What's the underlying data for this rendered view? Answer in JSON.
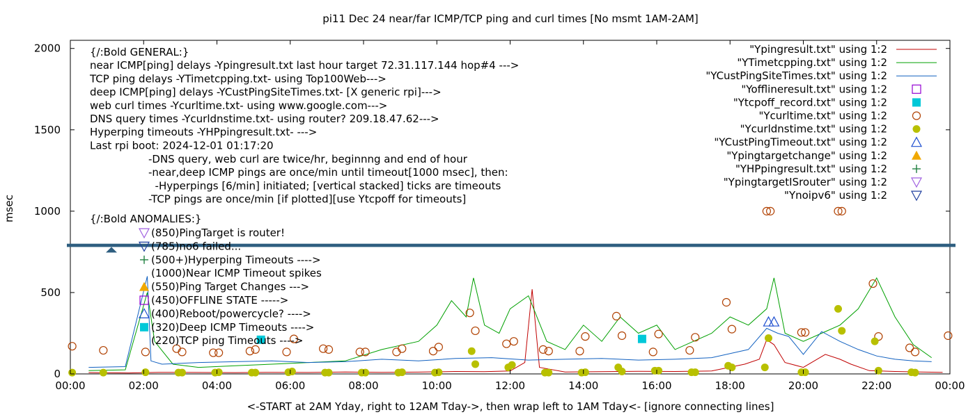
{
  "chart_data": {
    "type": "line",
    "title": "pi11 Dec 24  near/far ICMP/TCP ping and curl times [No msmt 1AM-2AM]",
    "xlabel": "<-START at 2AM Yday, right to 12AM Tday->, then wrap left to 1AM Tday<- [ignore connecting lines]",
    "ylabel": "msec",
    "x_ticks": [
      "00:00",
      "02:00",
      "04:00",
      "06:00",
      "08:00",
      "10:00",
      "12:00",
      "14:00",
      "16:00",
      "18:00",
      "20:00",
      "22:00",
      "00:00"
    ],
    "y_ticks": [
      "0",
      "500",
      "1000",
      "1500",
      "2000"
    ],
    "xlim": [
      0,
      24
    ],
    "ylim": [
      0,
      2050
    ],
    "y_break": [
      780,
      800
    ],
    "grid": false,
    "legend_position": "top-right",
    "series": [
      {
        "name": "\"Ypingresult.txt\" using 1:2",
        "style": "line",
        "color": "#c00000",
        "x": [
          0.5,
          1.6,
          2.4,
          3.5,
          4.5,
          5.5,
          6.5,
          7.5,
          8.5,
          9.5,
          10.5,
          11.3,
          12.0,
          12.4,
          12.6,
          12.8,
          13.5,
          14.5,
          15.5,
          16.5,
          17.5,
          18.4,
          18.8,
          19.0,
          19.2,
          19.5,
          20.0,
          20.6,
          21.0,
          21.3,
          21.8,
          22.5,
          23.2,
          23.8
        ],
        "y": [
          8,
          6,
          10,
          9,
          8,
          10,
          9,
          12,
          10,
          11,
          15,
          14,
          18,
          70,
          520,
          40,
          12,
          14,
          16,
          15,
          18,
          60,
          90,
          210,
          180,
          70,
          40,
          120,
          90,
          60,
          20,
          15,
          12,
          10
        ]
      },
      {
        "name": "\"YTimetcpping.txt\" using 1:2",
        "style": "line",
        "color": "#00a000",
        "x": [
          0.5,
          1.5,
          2.1,
          2.3,
          2.8,
          3.5,
          4.5,
          5.5,
          6.5,
          7.5,
          8.5,
          9.5,
          10.0,
          10.4,
          10.8,
          11.0,
          11.3,
          11.7,
          12.0,
          12.5,
          13.0,
          13.5,
          14.0,
          14.5,
          15.0,
          15.5,
          16.0,
          16.5,
          17.0,
          17.5,
          18.0,
          18.5,
          19.0,
          19.2,
          19.5,
          20.0,
          20.5,
          21.0,
          21.5,
          22.0,
          22.5,
          23.0,
          23.5
        ],
        "y": [
          20,
          25,
          500,
          200,
          60,
          40,
          50,
          60,
          70,
          80,
          150,
          200,
          300,
          450,
          350,
          590,
          300,
          250,
          400,
          480,
          200,
          150,
          300,
          200,
          350,
          250,
          300,
          150,
          200,
          250,
          350,
          300,
          400,
          590,
          250,
          200,
          250,
          300,
          400,
          590,
          350,
          180,
          100
        ]
      },
      {
        "name": "\"YCustPingSiteTimes.txt\" using 1:2",
        "style": "line",
        "color": "#1060c0",
        "x": [
          0.5,
          1.5,
          2.1,
          2.2,
          2.5,
          3.5,
          4.5,
          5.5,
          6.5,
          7.5,
          8.5,
          9.5,
          10.5,
          11.5,
          12.5,
          13.5,
          14.5,
          15.5,
          16.5,
          17.5,
          18.5,
          19.0,
          19.3,
          19.6,
          20.0,
          20.5,
          21.0,
          21.5,
          22.0,
          22.5,
          23.0,
          23.5
        ],
        "y": [
          40,
          45,
          600,
          80,
          60,
          70,
          75,
          80,
          70,
          75,
          90,
          80,
          95,
          100,
          85,
          90,
          95,
          85,
          90,
          100,
          150,
          280,
          250,
          230,
          120,
          260,
          200,
          150,
          110,
          90,
          80,
          75
        ]
      },
      {
        "name": "\"Yofflineresult.txt\" using 1:2",
        "style": "marker",
        "marker": "open-square",
        "color": "#9400d3",
        "x": [],
        "y": []
      },
      {
        "name": "\"Ytcpoff_record.txt\" using 1:2",
        "style": "marker",
        "marker": "filled-square",
        "color": "#00c8d8",
        "x": [
          5.2,
          15.6
        ],
        "y": [
          210,
          215
        ]
      },
      {
        "name": "\"Ycurltime.txt\" using 1:2",
        "style": "marker",
        "marker": "open-circle",
        "color": "#b04000",
        "x": [
          0.05,
          0.9,
          2.05,
          2.9,
          3.05,
          3.9,
          4.05,
          4.9,
          5.05,
          5.9,
          6.1,
          6.9,
          7.05,
          7.9,
          8.05,
          8.9,
          9.05,
          9.9,
          10.05,
          10.9,
          11.05,
          11.9,
          12.1,
          12.9,
          13.05,
          13.9,
          14.05,
          14.9,
          15.05,
          15.9,
          16.05,
          16.9,
          17.05,
          17.9,
          18.05,
          19.0,
          19.1,
          19.95,
          20.05,
          20.95,
          21.05,
          21.9,
          22.05,
          22.9,
          23.05,
          23.95
        ],
        "y": [
          170,
          145,
          135,
          155,
          135,
          130,
          130,
          140,
          150,
          135,
          215,
          155,
          150,
          135,
          135,
          135,
          155,
          140,
          165,
          375,
          265,
          185,
          200,
          150,
          140,
          140,
          230,
          355,
          235,
          135,
          245,
          145,
          225,
          440,
          275,
          1000,
          1000,
          255,
          255,
          1000,
          1000,
          555,
          230,
          160,
          135,
          235
        ]
      },
      {
        "name": "\"Ycurldnstime.txt\" using 1:2",
        "style": "marker",
        "marker": "filled-circle",
        "color": "#b8c000",
        "x": [
          0.05,
          0.9,
          2.05,
          2.95,
          3.05,
          3.95,
          4.05,
          4.95,
          5.05,
          5.95,
          6.05,
          6.95,
          7.05,
          7.95,
          8.05,
          8.95,
          9.05,
          9.95,
          10.05,
          10.95,
          11.05,
          11.95,
          12.05,
          12.95,
          13.05,
          13.95,
          14.05,
          14.95,
          15.05,
          15.95,
          16.05,
          16.95,
          17.05,
          17.95,
          18.05,
          18.95,
          19.05,
          19.95,
          20.05,
          20.95,
          21.05,
          21.95,
          22.05,
          22.95,
          23.05
        ],
        "y": [
          8,
          8,
          10,
          8,
          8,
          8,
          10,
          8,
          8,
          10,
          15,
          8,
          8,
          8,
          8,
          8,
          10,
          8,
          10,
          140,
          60,
          40,
          55,
          8,
          8,
          8,
          10,
          40,
          15,
          20,
          20,
          10,
          10,
          50,
          40,
          40,
          220,
          10,
          10,
          400,
          265,
          200,
          20,
          10,
          8
        ]
      },
      {
        "name": "\"YCustPingTimeout.txt\" using 1:2",
        "style": "marker",
        "marker": "open-triangle-up",
        "color": "#1f4fd0",
        "x": [
          19.05,
          19.2
        ],
        "y": [
          320,
          320
        ]
      },
      {
        "name": "\"Ypingtargetchange\" using 1:2",
        "style": "marker",
        "marker": "filled-triangle-up",
        "color": "#f0a800",
        "x": [],
        "y": []
      },
      {
        "name": "\"YHPpingresult.txt\" using 1:2",
        "style": "marker",
        "marker": "plus",
        "color": "#208040",
        "x": [],
        "y": []
      },
      {
        "name": "\"YpingtargetISrouter\" using 1:2",
        "style": "marker",
        "marker": "open-triangle-down",
        "color": "#a060e0",
        "x": [],
        "y": []
      },
      {
        "name": "\"Ynoipv6\" using 1:2",
        "style": "marker",
        "marker": "open-triangle-down",
        "color": "#1f3f9f",
        "x": [],
        "y": []
      }
    ],
    "notes_general": [
      "{/:Bold GENERAL:}",
      "near ICMP[ping] delays -Ypingresult.txt last hour target 72.31.117.144 hop#4 --->",
      "TCP ping delays -YTimetcpping.txt- using Top100Web--->",
      "deep ICMP[ping] delays -YCustPingSiteTimes.txt- [X generic rpi]--->",
      "web curl times -Ycurltime.txt- using www.google.com--->",
      "DNS query times -Ycurldnstime.txt- using router? 209.18.47.62--->",
      "Hyperping timeouts -YHPpingresult.txt- --->",
      "Last rpi boot: 2024-12-01 01:17:20"
    ],
    "notes_indented": [
      "-DNS query, web curl are twice/hr, beginnng and end of hour",
      "-near,deep ICMP pings are once/min until timeout[1000 msec], then:",
      "  -Hyperpings [6/min] initiated; [vertical stacked] ticks are timeouts",
      "-TCP pings are once/min [if plotted][use Ytcpoff for timeouts]"
    ],
    "anomalies_heading": "{/:Bold ANOMALIES:}",
    "anomalies": [
      {
        "text": "(850)PingTarget is router!",
        "marker": "open-triangle-down",
        "color": "#a060e0"
      },
      {
        "text": "(785)no6 failed...",
        "marker": "open-triangle-down",
        "color": "#1f3f9f"
      },
      {
        "text": "(500+)Hyperping Timeouts ---->",
        "marker": "plus",
        "color": "#208040"
      },
      {
        "text": "(1000)Near ICMP Timeout spikes",
        "marker": "none",
        "color": "#000000"
      },
      {
        "text": "(550)Ping Target Changes --->",
        "marker": "filled-triangle-up",
        "color": "#f0a800"
      },
      {
        "text": "(450)OFFLINE STATE ----->",
        "marker": "open-square",
        "color": "#9400d3"
      },
      {
        "text": "(400)Reboot/powercycle? ---->",
        "marker": "open-triangle-up",
        "color": "#1f4fd0"
      },
      {
        "text": "(320)Deep ICMP Timeouts ---->",
        "marker": "filled-square",
        "color": "#00c8d8"
      },
      {
        "text": "(220)TCP ping Timeouts ---->",
        "marker": "none",
        "color": "#000000"
      }
    ],
    "break_band_color": "#2e5e80"
  }
}
